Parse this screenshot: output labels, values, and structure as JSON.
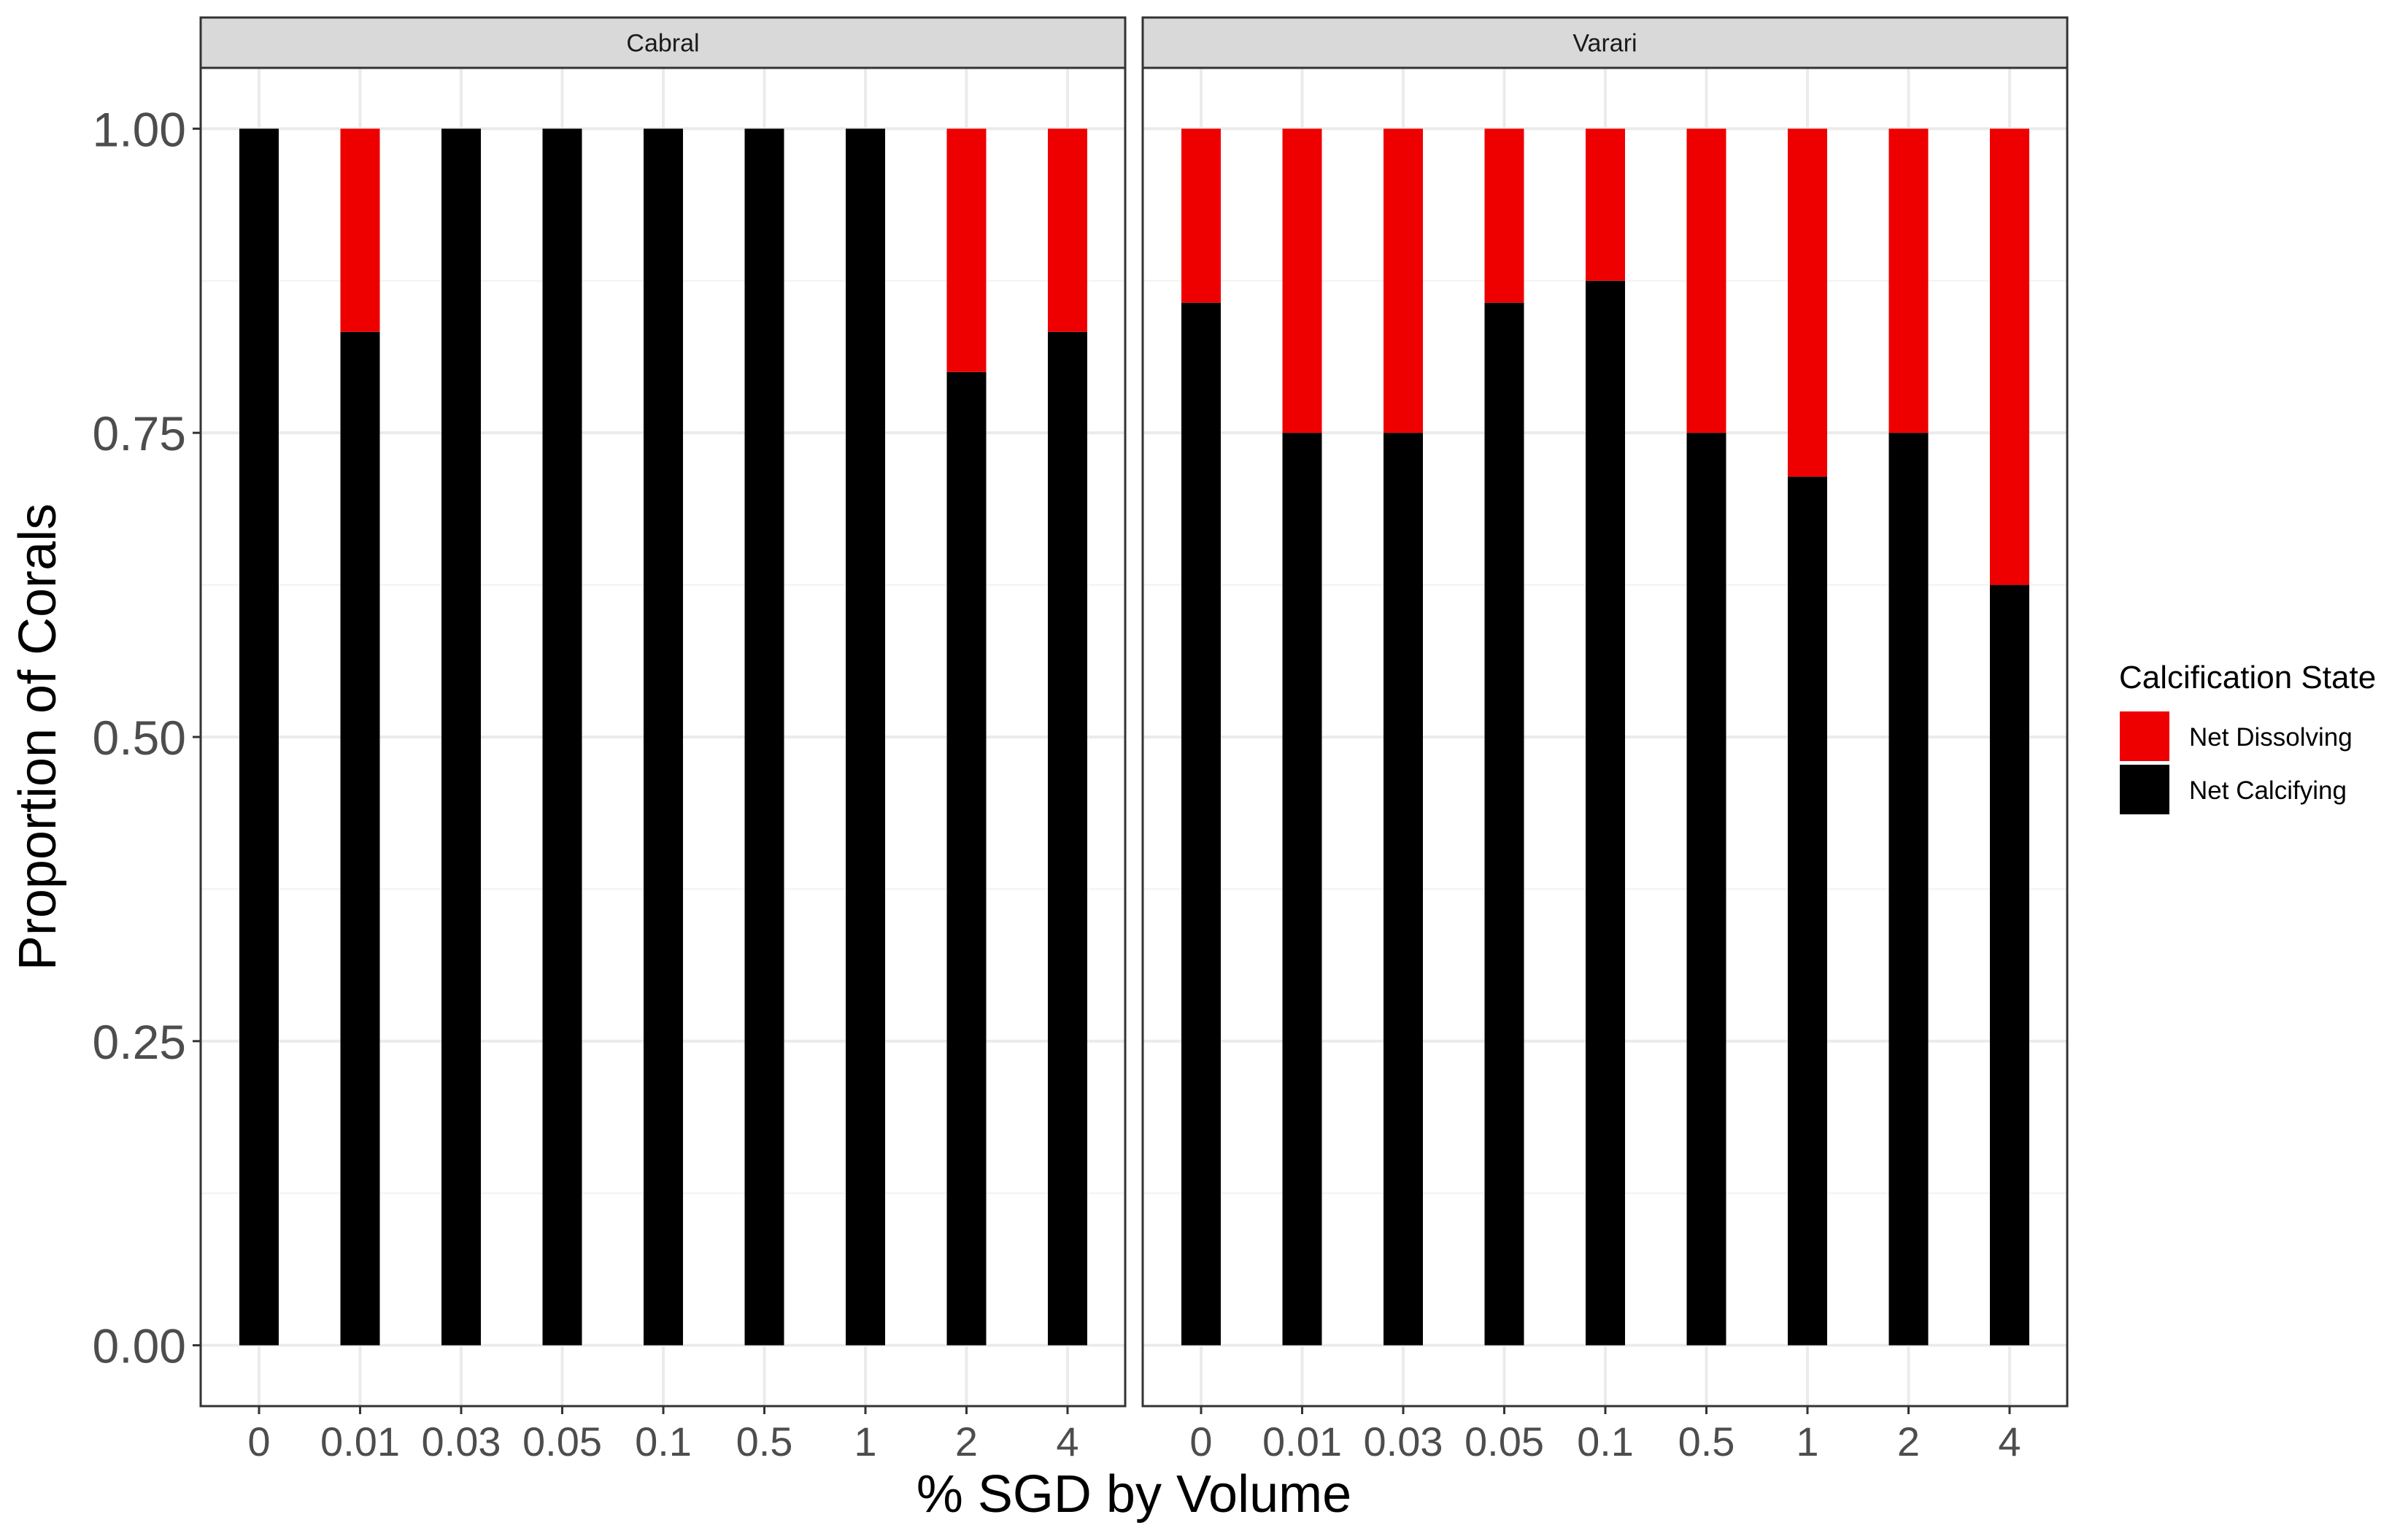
{
  "chart_data": {
    "type": "bar",
    "stacked": true,
    "xlabel": "% SGD by Volume",
    "ylabel": "Proportion of Corals",
    "ylim": [
      -0.05,
      1.05
    ],
    "yticks": [
      "0.00",
      "0.25",
      "0.50",
      "0.75",
      "1.00"
    ],
    "grid": true,
    "legend": {
      "title": "Calcification State",
      "position": "right",
      "entries": [
        {
          "name": "Net Dissolving",
          "color": "#ee0000"
        },
        {
          "name": "Net Calcifying",
          "color": "#000000"
        }
      ]
    },
    "categories": [
      "0",
      "0.01",
      "0.03",
      "0.05",
      "0.1",
      "0.5",
      "1",
      "2",
      "4"
    ],
    "panels": [
      {
        "title": "Cabral",
        "series": [
          {
            "name": "Net Calcifying",
            "values": [
              1.0,
              0.833,
              1.0,
              1.0,
              1.0,
              1.0,
              1.0,
              0.8,
              0.833
            ]
          },
          {
            "name": "Net Dissolving",
            "values": [
              0.0,
              0.167,
              0.0,
              0.0,
              0.0,
              0.0,
              0.0,
              0.2,
              0.167
            ]
          }
        ]
      },
      {
        "title": "Varari",
        "series": [
          {
            "name": "Net Calcifying",
            "values": [
              0.857,
              0.75,
              0.75,
              0.857,
              0.875,
              0.75,
              0.714,
              0.75,
              0.625
            ]
          },
          {
            "name": "Net Dissolving",
            "values": [
              0.143,
              0.25,
              0.25,
              0.143,
              0.125,
              0.25,
              0.286,
              0.25,
              0.375
            ]
          }
        ]
      }
    ]
  }
}
